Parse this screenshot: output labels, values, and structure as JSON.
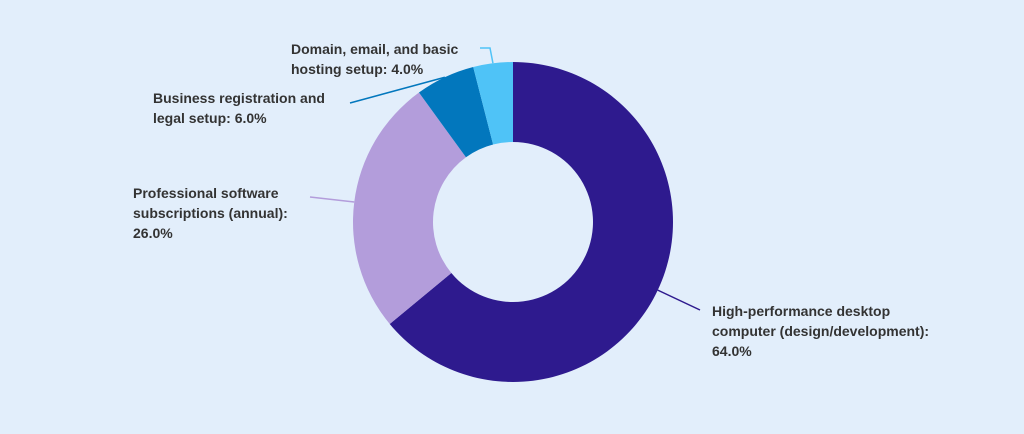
{
  "chart_data": {
    "type": "pie",
    "categories": [
      "High-performance desktop computer (design/development)",
      "Professional software subscriptions (annual)",
      "Business registration and legal setup",
      "Domain, email, and basic hosting setup"
    ],
    "values": [
      64,
      26,
      6,
      4
    ],
    "value_labels": [
      "64.0%",
      "26.0%",
      "6.0%",
      "4.0%"
    ],
    "colors": [
      "#2e1a8e",
      "#b39ddb",
      "#0277bd",
      "#4fc3f7"
    ]
  }
}
